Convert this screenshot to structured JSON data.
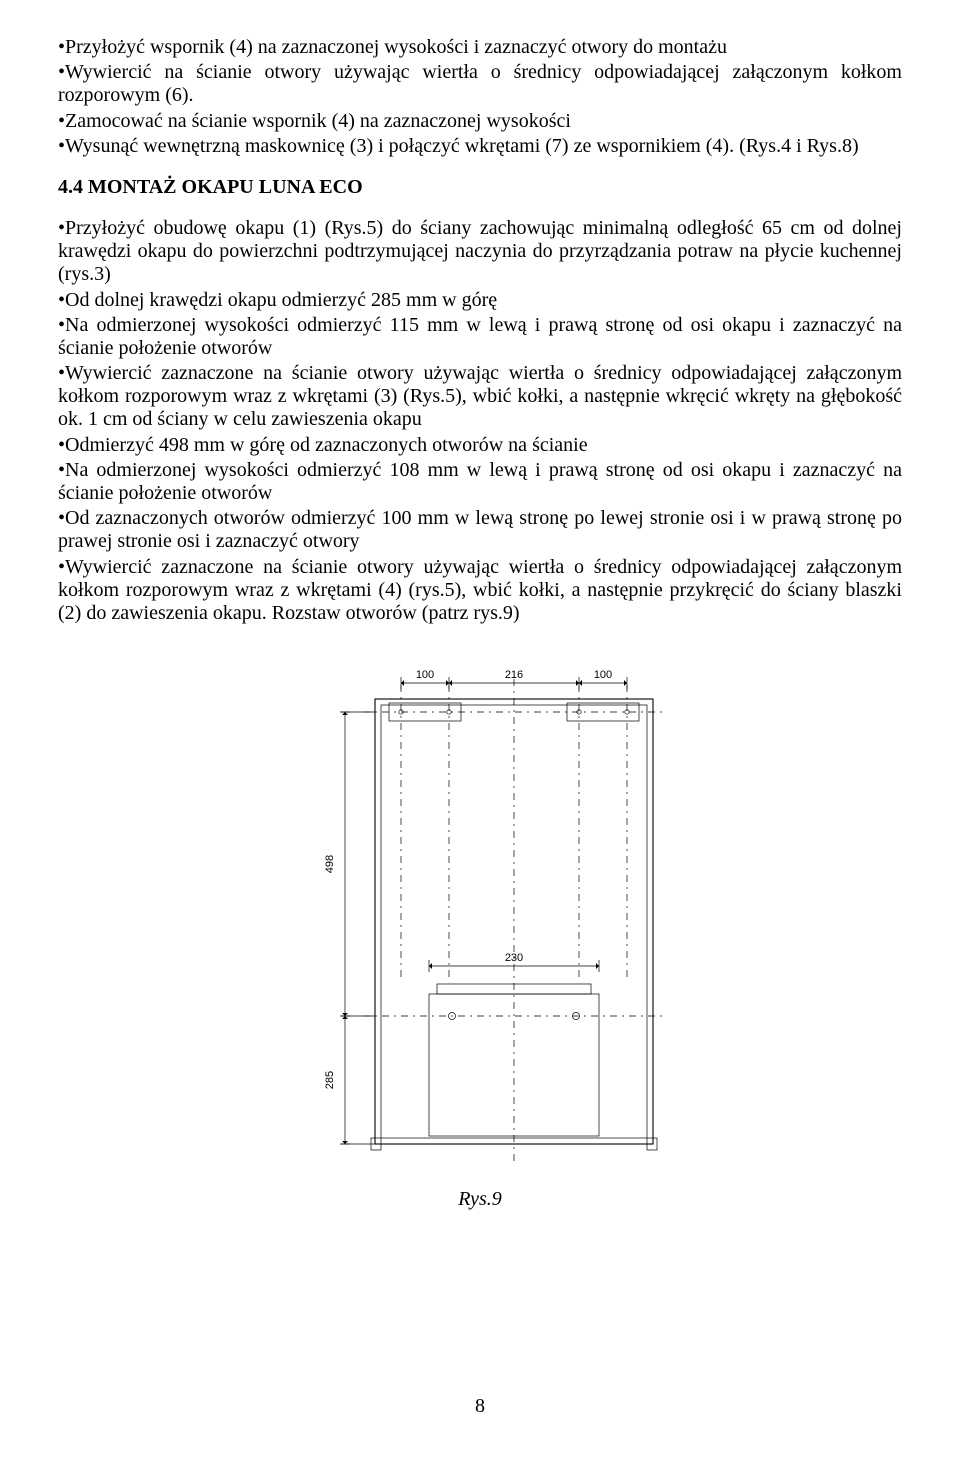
{
  "paragraphs": {
    "p1": "•Przyłożyć wspornik (4) na zaznaczonej wysokości i zaznaczyć otwory do montażu",
    "p2": "•Wywiercić na ścianie otwory używając wiertła o średnicy odpowiadającej załączonym kołkom rozporowym (6).",
    "p3": "•Zamocować na ścianie wspornik (4) na zaznaczonej wysokości",
    "p4": "•Wysunąć wewnętrzną maskownicę (3) i połączyć wkrętami (7) ze wspornikiem (4). (Rys.4 i Rys.8)"
  },
  "section_title": "4.4 MONTAŻ OKAPU LUNA ECO",
  "paragraphs2": {
    "q1": "•Przyłożyć obudowę okapu (1) (Rys.5) do ściany zachowując minimalną odległość 65 cm od dolnej krawędzi okapu do powierzchni podtrzymującej naczynia do przyrządzania potraw na płycie kuchennej (rys.3)",
    "q2": "•Od dolnej krawędzi okapu odmierzyć 285 mm w górę",
    "q3": "•Na odmierzonej wysokości odmierzyć 115 mm w lewą i prawą stronę od osi okapu   i zaznaczyć na ścianie położenie otworów",
    "q4": "•Wywiercić zaznaczone na ścianie otwory używając wiertła o średnicy odpowiadającej załączonym kołkom rozporowym wraz z wkrętami (3) (Rys.5), wbić kołki, a następnie wkręcić wkręty na głębokość ok. 1 cm od ściany w celu zawieszenia okapu",
    "q5": "•Odmierzyć 498 mm w górę od zaznaczonych otworów na ścianie",
    "q6": "•Na odmierzonej wysokości odmierzyć 108 mm w lewą i prawą stronę od osi okapu   i zaznaczyć na ścianie położenie otworów",
    "q7": "•Od zaznaczonych otworów odmierzyć 100 mm w lewą stronę po lewej stronie osi    i w prawą stronę po prawej stronie osi i zaznaczyć otwory",
    "q8": "•Wywiercić zaznaczone na ścianie otwory używając wiertła o średnicy odpowiadającej załączonym kołkom rozporowym wraz z wkrętami (4) (rys.5), wbić kołki, a następnie przykręcić do ściany blaszki (2) do zawieszenia okapu. Rozstaw otworów (patrz rys.9)"
  },
  "figure": {
    "caption": "Rys.9",
    "dims": {
      "top_left": "100",
      "top_mid": "216",
      "top_right": "100",
      "left_498": "498",
      "mid_230": "230",
      "left_285": "285"
    },
    "colors": {
      "line": "#000000",
      "dash": "#000000",
      "text": "#000000",
      "bg": "#ffffff"
    },
    "stroke_width_main": 1.1,
    "stroke_width_thin": 0.7,
    "dash_pattern": "7,5,2,5",
    "axis_font_size": 11
  },
  "page_number": "8"
}
